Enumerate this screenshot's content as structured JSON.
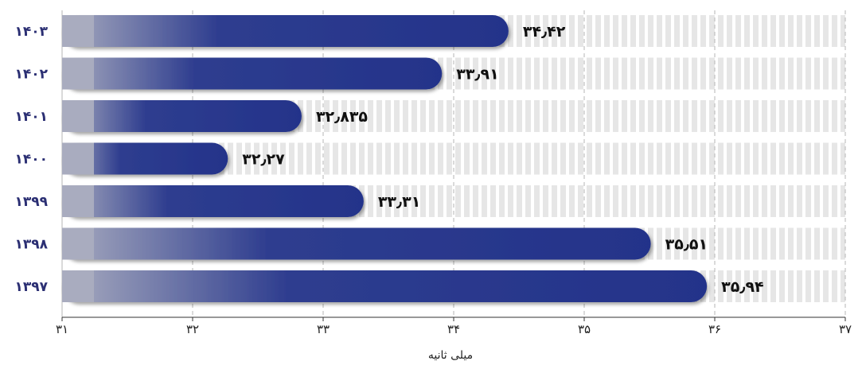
{
  "chart_data": {
    "type": "bar",
    "orientation": "horizontal",
    "categories": [
      "۱۴۰۳",
      "۱۴۰۲",
      "۱۴۰۱",
      "۱۴۰۰",
      "۱۳۹۹",
      "۱۳۹۸",
      "۱۳۹۷"
    ],
    "values": [
      34.42,
      33.91,
      32.835,
      32.27,
      33.31,
      35.51,
      35.94
    ],
    "value_labels": [
      "۳۴٫۴۲",
      "۳۳٫۹۱",
      "۳۲٫۸۳۵",
      "۳۲٫۲۷",
      "۳۳٫۳۱",
      "۳۵٫۵۱",
      "۳۵٫۹۴"
    ],
    "xlim": [
      31,
      37
    ],
    "x_ticks": [
      31,
      32,
      33,
      34,
      35,
      36,
      37
    ],
    "x_tick_labels": [
      "۳۱",
      "۳۲",
      "۳۳",
      "۳۴",
      "۳۵",
      "۳۶",
      "۳۷"
    ],
    "xlabel": "میلی ثانیه",
    "ylabel": "",
    "title": "",
    "grid": true,
    "colors": {
      "bar_start": "#a9acbf",
      "bar_mid": "#2e3d8f",
      "bar_end": "#24338a",
      "track_stripe": "#e6e6e6",
      "category_text": "#2b2f73",
      "grid": "#b5b5b5"
    }
  }
}
